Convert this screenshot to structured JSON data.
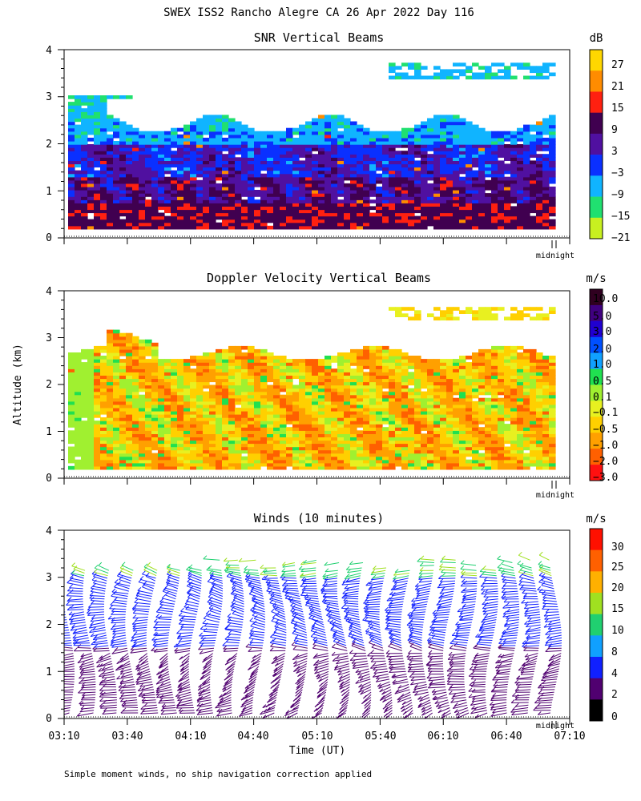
{
  "figure": {
    "title": "SWEX ISS2 Rancho Alegre CA  26 Apr 2022 Day 116",
    "ylabel": "Altitude (km)",
    "xlabel": "Time (UT)",
    "footnote": "Simple moment winds, no ship navigation correction applied",
    "midnight_label": "midnight",
    "x_ticks": [
      "03:10",
      "03:40",
      "04:10",
      "04:40",
      "05:10",
      "05:40",
      "06:10",
      "06:40",
      "07:10"
    ],
    "y_ticks": [
      "0",
      "1",
      "2",
      "3",
      "4"
    ]
  },
  "chart_data": [
    {
      "type": "heatmap",
      "title": "SNR Vertical Beams",
      "x_range": [
        "03:10",
        "07:10"
      ],
      "ylim": [
        0,
        4
      ],
      "colorbar": {
        "unit": "dB",
        "labels": [
          "27",
          "21",
          "15",
          "9",
          "3",
          "−3",
          "−9",
          "−15",
          "−21"
        ],
        "colors": [
          "#ffd700",
          "#ff8c00",
          "#ff2010",
          "#400050",
          "#5010a0",
          "#0a30ff",
          "#10b4ff",
          "#20e070",
          "#c8f020"
        ]
      }
    },
    {
      "type": "heatmap",
      "title": "Doppler Velocity Vertical Beams",
      "x_range": [
        "03:10",
        "07:10"
      ],
      "ylim": [
        0,
        4
      ],
      "colorbar": {
        "unit": "m/s",
        "labels": [
          "10.0",
          "5.0",
          "3.0",
          "2.0",
          "1.0",
          "0.5",
          "0.1",
          "−0.1",
          "−0.5",
          "−1.0",
          "−2.0",
          "−3.0"
        ],
        "colors": [
          "#300020",
          "#400080",
          "#2000d0",
          "#0050ff",
          "#10a0ff",
          "#20e050",
          "#a0f030",
          "#e8f020",
          "#ffd000",
          "#ffa000",
          "#ff6000",
          "#ff1010"
        ]
      }
    },
    {
      "type": "scatter",
      "title": "Winds (10 minutes)",
      "x_range": [
        "03:10",
        "07:10"
      ],
      "ylim": [
        0,
        4
      ],
      "colorbar": {
        "unit": "m/s",
        "labels": [
          "30",
          "25",
          "20",
          "15",
          "10",
          "8",
          "4",
          "2",
          "0"
        ],
        "colors": [
          "#ff1000",
          "#ff6000",
          "#ffb000",
          "#a0e020",
          "#20d070",
          "#10a0ff",
          "#1020ff",
          "#500070",
          "#000000"
        ]
      }
    }
  ]
}
